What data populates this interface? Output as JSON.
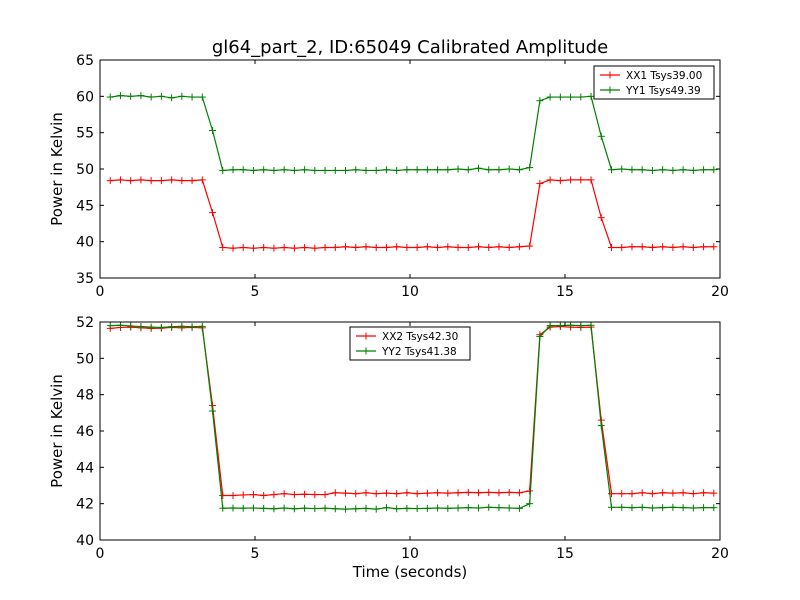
{
  "title": "gl64_part_2, ID:65049 Calibrated Amplitude",
  "chart_data": [
    {
      "type": "line",
      "ylabel": "Power in Kelvin",
      "xlabel": "",
      "xlim": [
        0,
        20
      ],
      "ylim": [
        35,
        65
      ],
      "xticks": [
        "0",
        "5",
        "10",
        "15",
        "20"
      ],
      "yticks": [
        "35",
        "40",
        "45",
        "50",
        "55",
        "60",
        "65"
      ],
      "legend_position": "top-right",
      "series": [
        {
          "name": "XX1 Tsys39.00",
          "color": "#ff0000",
          "x": [
            0.33,
            0.66,
            0.99,
            1.32,
            1.65,
            1.98,
            2.31,
            2.64,
            2.97,
            3.3,
            3.63,
            3.96,
            4.29,
            4.62,
            4.95,
            5.28,
            5.61,
            5.94,
            6.27,
            6.6,
            6.93,
            7.26,
            7.59,
            7.92,
            8.25,
            8.58,
            8.91,
            9.24,
            9.57,
            9.9,
            10.23,
            10.56,
            10.89,
            11.22,
            11.55,
            11.88,
            12.21,
            12.54,
            12.87,
            13.2,
            13.53,
            13.86,
            14.19,
            14.52,
            14.85,
            15.18,
            15.51,
            15.84,
            16.17,
            16.5,
            16.83,
            17.16,
            17.49,
            17.82,
            18.15,
            18.48,
            18.81,
            19.14,
            19.47,
            19.8
          ],
          "y": [
            48.4,
            48.5,
            48.4,
            48.5,
            48.4,
            48.4,
            48.5,
            48.4,
            48.4,
            48.5,
            44,
            39.2,
            39.1,
            39.2,
            39.1,
            39.2,
            39.1,
            39.2,
            39.1,
            39.2,
            39.1,
            39.2,
            39.2,
            39.3,
            39.2,
            39.3,
            39.2,
            39.2,
            39.3,
            39.2,
            39.2,
            39.3,
            39.2,
            39.3,
            39.2,
            39.2,
            39.3,
            39.2,
            39.3,
            39.2,
            39.3,
            39.4,
            48,
            48.5,
            48.4,
            48.5,
            48.5,
            48.5,
            43.3,
            39.2,
            39.2,
            39.3,
            39.3,
            39.2,
            39.3,
            39.2,
            39.3,
            39.2,
            39.3,
            39.3
          ]
        },
        {
          "name": "YY1 Tsys49.39",
          "color": "#008000",
          "x": [
            0.33,
            0.66,
            0.99,
            1.32,
            1.65,
            1.98,
            2.31,
            2.64,
            2.97,
            3.3,
            3.63,
            3.96,
            4.29,
            4.62,
            4.95,
            5.28,
            5.61,
            5.94,
            6.27,
            6.6,
            6.93,
            7.26,
            7.59,
            7.92,
            8.25,
            8.58,
            8.91,
            9.24,
            9.57,
            9.9,
            10.23,
            10.56,
            10.89,
            11.22,
            11.55,
            11.88,
            12.21,
            12.54,
            12.87,
            13.2,
            13.53,
            13.86,
            14.19,
            14.52,
            14.85,
            15.18,
            15.51,
            15.84,
            16.17,
            16.5,
            16.83,
            17.16,
            17.49,
            17.82,
            18.15,
            18.48,
            18.81,
            19.14,
            19.47,
            19.8
          ],
          "y": [
            59.9,
            60.1,
            60,
            60.1,
            59.9,
            60,
            59.8,
            60,
            59.9,
            59.9,
            55.3,
            49.8,
            49.9,
            49.9,
            49.8,
            49.9,
            49.8,
            49.9,
            49.8,
            49.9,
            49.8,
            49.8,
            49.8,
            49.8,
            49.9,
            49.8,
            49.8,
            49.9,
            49.8,
            49.9,
            49.9,
            49.9,
            49.9,
            49.9,
            50,
            49.9,
            50.1,
            49.9,
            49.9,
            50,
            49.9,
            50.2,
            59.4,
            59.9,
            59.9,
            59.9,
            59.9,
            60,
            54.5,
            49.9,
            50,
            49.9,
            49.9,
            49.8,
            49.9,
            49.8,
            49.9,
            49.8,
            49.9,
            49.9
          ]
        }
      ]
    },
    {
      "type": "line",
      "ylabel": "Power in Kelvin",
      "xlabel": "Time (seconds)",
      "xlim": [
        0,
        20
      ],
      "ylim": [
        40,
        52
      ],
      "xticks": [
        "0",
        "5",
        "10",
        "15",
        "20"
      ],
      "yticks": [
        "40",
        "42",
        "44",
        "46",
        "48",
        "50",
        "52"
      ],
      "legend_position": "top-center",
      "series": [
        {
          "name": "XX2 Tsys42.30",
          "color": "#ff0000",
          "x": [
            0.33,
            0.66,
            0.99,
            1.32,
            1.65,
            1.98,
            2.31,
            2.64,
            2.97,
            3.3,
            3.63,
            3.96,
            4.29,
            4.62,
            4.95,
            5.28,
            5.61,
            5.94,
            6.27,
            6.6,
            6.93,
            7.26,
            7.59,
            7.92,
            8.25,
            8.58,
            8.91,
            9.24,
            9.57,
            9.9,
            10.23,
            10.56,
            10.89,
            11.22,
            11.55,
            11.88,
            12.21,
            12.54,
            12.87,
            13.2,
            13.53,
            13.86,
            14.19,
            14.52,
            14.85,
            15.18,
            15.51,
            15.84,
            16.17,
            16.5,
            16.83,
            17.16,
            17.49,
            17.82,
            18.15,
            18.48,
            18.81,
            19.14,
            19.47,
            19.8
          ],
          "y": [
            51.65,
            51.7,
            51.72,
            51.68,
            51.65,
            51.66,
            51.7,
            51.68,
            51.7,
            51.68,
            47.4,
            42.45,
            42.45,
            42.48,
            42.5,
            42.45,
            42.5,
            42.55,
            42.5,
            42.52,
            42.5,
            42.5,
            42.6,
            42.58,
            42.55,
            42.6,
            42.55,
            42.58,
            42.55,
            42.6,
            42.55,
            42.58,
            42.6,
            42.58,
            42.6,
            42.62,
            42.6,
            42.62,
            42.6,
            42.62,
            42.6,
            42.7,
            51.3,
            51.72,
            51.75,
            51.72,
            51.7,
            51.72,
            46.6,
            42.55,
            42.55,
            42.55,
            42.6,
            42.55,
            42.6,
            42.58,
            42.6,
            42.55,
            42.6,
            42.58
          ]
        },
        {
          "name": "YY2 Tsys41.38",
          "color": "#008000",
          "x": [
            0.33,
            0.66,
            0.99,
            1.32,
            1.65,
            1.98,
            2.31,
            2.64,
            2.97,
            3.3,
            3.63,
            3.96,
            4.29,
            4.62,
            4.95,
            5.28,
            5.61,
            5.94,
            6.27,
            6.6,
            6.93,
            7.26,
            7.59,
            7.92,
            8.25,
            8.58,
            8.91,
            9.24,
            9.57,
            9.9,
            10.23,
            10.56,
            10.89,
            11.22,
            11.55,
            11.88,
            12.21,
            12.54,
            12.87,
            13.2,
            13.53,
            13.86,
            14.19,
            14.52,
            14.85,
            15.18,
            15.51,
            15.84,
            16.17,
            16.5,
            16.83,
            17.16,
            17.49,
            17.82,
            18.15,
            18.48,
            18.81,
            19.14,
            19.47,
            19.8
          ],
          "y": [
            51.8,
            51.82,
            51.78,
            51.75,
            51.72,
            51.7,
            51.74,
            51.76,
            51.74,
            51.76,
            47.1,
            41.75,
            41.76,
            41.75,
            41.76,
            41.74,
            41.72,
            41.76,
            41.72,
            41.75,
            41.73,
            41.75,
            41.72,
            41.7,
            41.72,
            41.74,
            41.7,
            41.78,
            41.72,
            41.74,
            41.73,
            41.74,
            41.76,
            41.74,
            41.76,
            41.78,
            41.76,
            41.8,
            41.78,
            41.76,
            41.74,
            42,
            51.2,
            51.8,
            51.8,
            51.82,
            51.8,
            51.82,
            46.3,
            41.8,
            41.8,
            41.78,
            41.8,
            41.76,
            41.78,
            41.8,
            41.78,
            41.76,
            41.78,
            41.78
          ]
        }
      ]
    }
  ]
}
